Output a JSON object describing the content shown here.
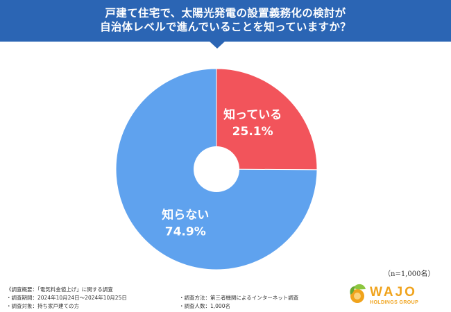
{
  "header": {
    "line1": "戸建て住宅で、太陽光発電の設置義務化の検討が",
    "line2": "自治体レベルで進んでいることを知っていますか？",
    "bg_color": "#2b65b4"
  },
  "chart_data": {
    "type": "pie",
    "donut": true,
    "title": "戸建て住宅で、太陽光発電の設置義務化の検討が自治体レベルで進んでいることを知っていますか？",
    "slices": [
      {
        "label": "知っている",
        "value": 25.1,
        "display": "25.1%",
        "color": "#f2545b"
      },
      {
        "label": "知らない",
        "value": 74.9,
        "display": "74.9%",
        "color": "#5fa2ee"
      }
    ]
  },
  "sample_size": "（n=1,000名）",
  "notes": {
    "overview": "《調査概要：「電気料金値上げ」に関する調査",
    "period": "・調査期間：2024年10月24日〜2024年10月25日",
    "target": "・調査対象：持ち家戸建ての方",
    "method": "・調査方法：第三者機関によるインターネット調査",
    "respondents": "・調査人数：1,000名"
  },
  "logo": {
    "name": "WAJO",
    "subtitle": "HOLDINGS GROUP",
    "brand_color": "#f0a31c",
    "leaf_color": "#8cc63f"
  }
}
